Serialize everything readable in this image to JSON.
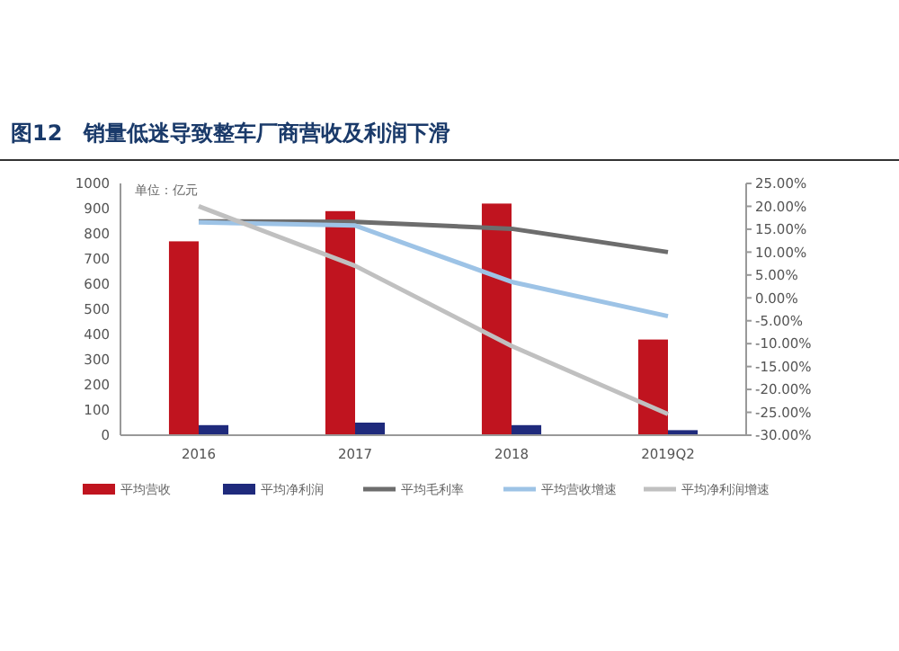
{
  "chart_data": {
    "type": "bar",
    "title": "图12　销量低迷导致整车厂商营收及利润下滑",
    "annotations": [
      "单位：亿元"
    ],
    "categories": [
      "2016",
      "2017",
      "2018",
      "2019Q2"
    ],
    "series": [
      {
        "name": "平均营收",
        "color": "#c0141f",
        "values": [
          770,
          890,
          920,
          380
        ]
      },
      {
        "name": "平均净利润",
        "color": "#1f2a7c",
        "values": [
          40,
          50,
          40,
          20
        ]
      },
      {
        "name": "平均毛利率",
        "type": "line",
        "axis": "y2",
        "color": "#6d6d6d",
        "values": [
          16.7,
          16.6,
          15.1,
          10.0
        ]
      },
      {
        "name": "平均营收增速",
        "type": "line",
        "axis": "y2",
        "color": "#9dc3e6",
        "values": [
          16.5,
          15.8,
          3.5,
          -4
        ]
      },
      {
        "name": "平均净利润增速",
        "type": "line",
        "axis": "y2",
        "color": "#c0c0c0",
        "values": [
          20,
          7,
          -10.5,
          -25.4
        ]
      }
    ],
    "ylim": [
      0,
      1000
    ],
    "yticks": [
      0,
      100,
      200,
      300,
      400,
      500,
      600,
      700,
      800,
      900,
      1000
    ],
    "y2lim": [
      -30,
      25
    ],
    "y2ticks": [
      {
        "value": -30,
        "label": "-30.00%"
      },
      {
        "value": -25,
        "label": "-25.00%"
      },
      {
        "value": -20,
        "label": "-20.00%"
      },
      {
        "value": -15,
        "label": "-15.00%"
      },
      {
        "value": -10,
        "label": "-10.00%"
      },
      {
        "value": -5,
        "label": "-5.00%"
      },
      {
        "value": 0,
        "label": "0.00%"
      },
      {
        "value": 5,
        "label": "5.00%"
      },
      {
        "value": 10,
        "label": "10.00%"
      },
      {
        "value": 15,
        "label": "15.00%"
      },
      {
        "value": 20,
        "label": "20.00%"
      },
      {
        "value": 25,
        "label": "25.00%"
      }
    ],
    "legend": "bottom",
    "grid": false
  }
}
